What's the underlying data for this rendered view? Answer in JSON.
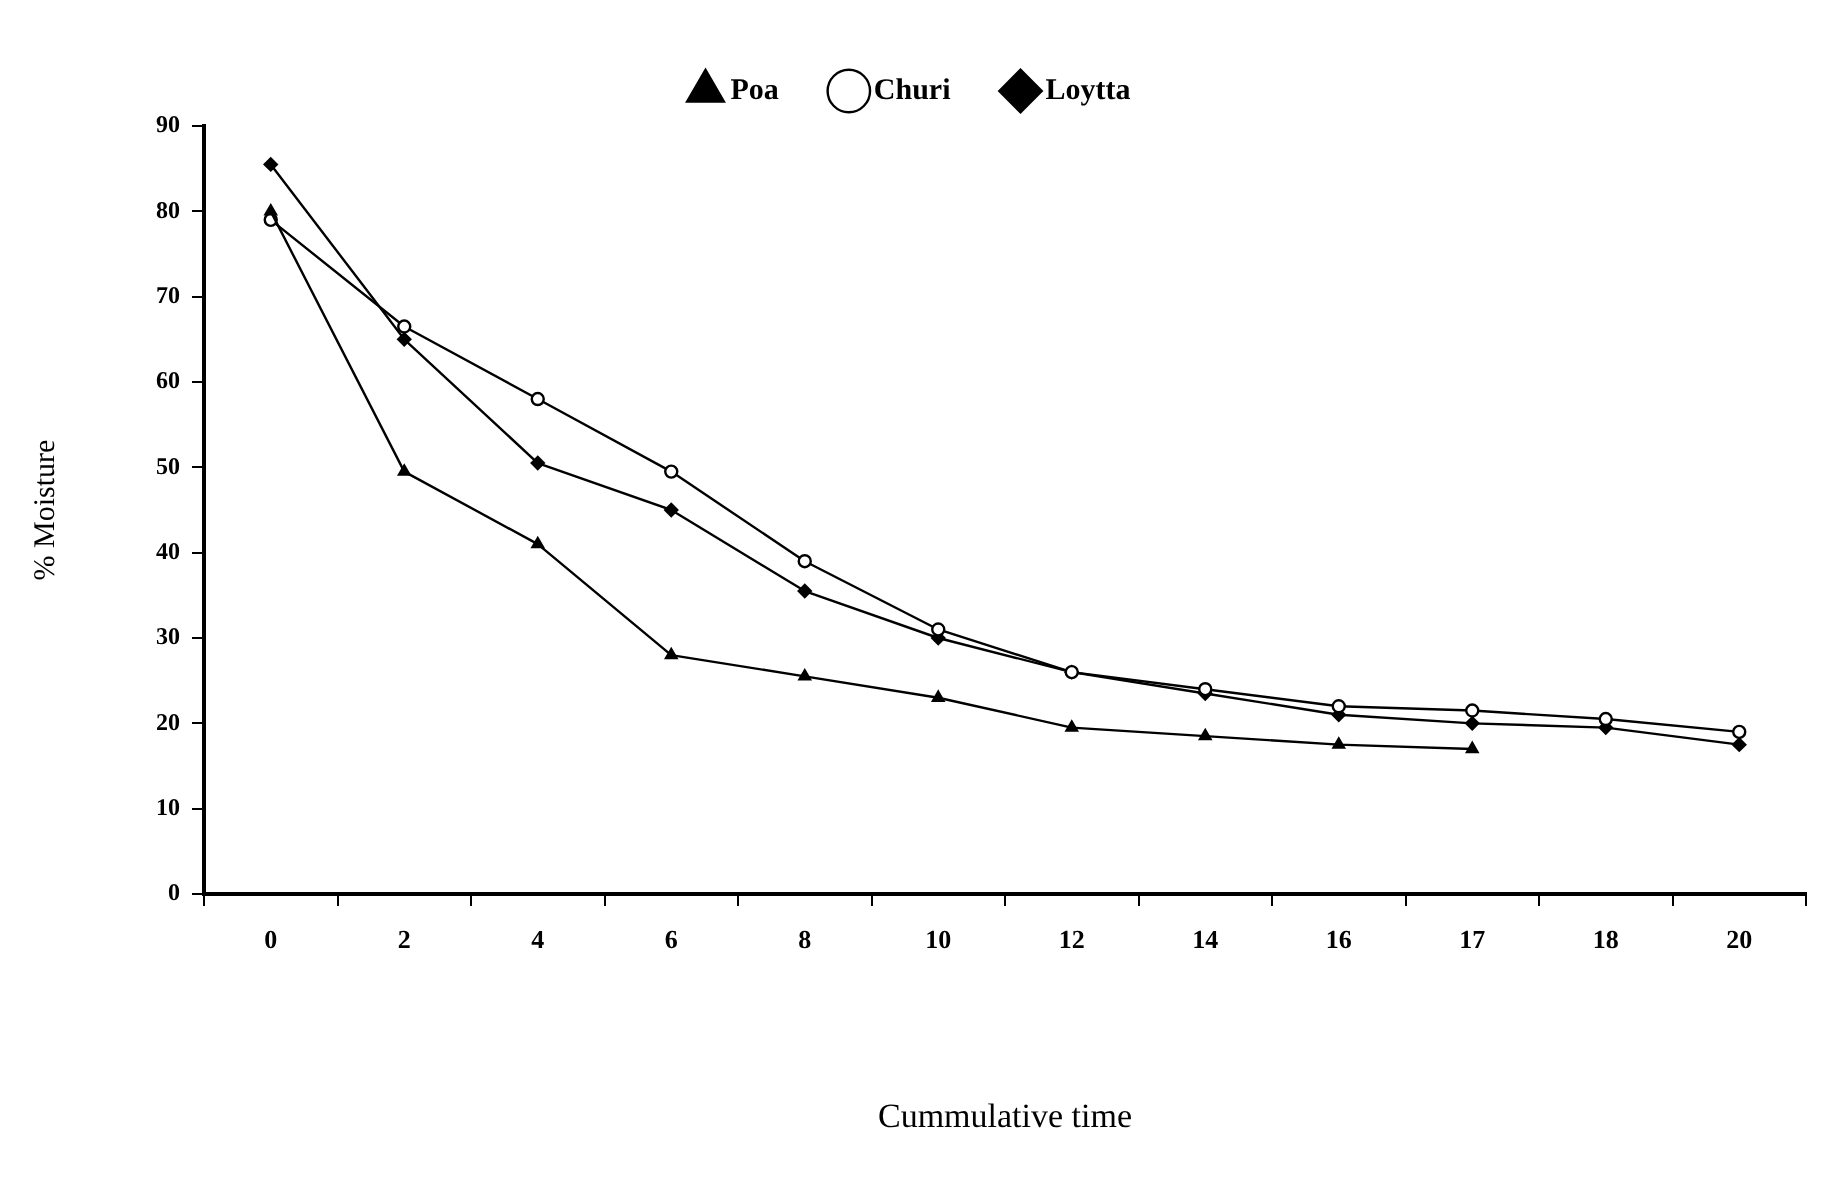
{
  "chart_data": {
    "type": "line",
    "xlabel": "Cummulative time",
    "ylabel": "% Moisture",
    "categories": [
      "0",
      "2",
      "4",
      "6",
      "8",
      "10",
      "12",
      "14",
      "16",
      "17",
      "18",
      "20"
    ],
    "ylim": [
      0,
      90
    ],
    "yticks": [
      0,
      10,
      20,
      30,
      40,
      50,
      60,
      70,
      80,
      90
    ],
    "grid": false,
    "legend": "top",
    "series": [
      {
        "name": "Poa",
        "color": "#000000",
        "marker": "triangle",
        "values": [
          80,
          49.5,
          41,
          28,
          25.5,
          23,
          19.5,
          18.5,
          17.5,
          17,
          null,
          null
        ]
      },
      {
        "name": "Churi",
        "color": "#000000",
        "marker": "circle",
        "values": [
          79,
          66.5,
          58,
          49.5,
          39,
          31,
          26,
          24,
          22,
          21.5,
          20.5,
          19
        ]
      },
      {
        "name": "Loytta",
        "color": "#000000",
        "marker": "diamond",
        "values": [
          85.5,
          65,
          50.5,
          45,
          35.5,
          30,
          26,
          23.5,
          21,
          20,
          19.5,
          17.5
        ]
      }
    ]
  }
}
